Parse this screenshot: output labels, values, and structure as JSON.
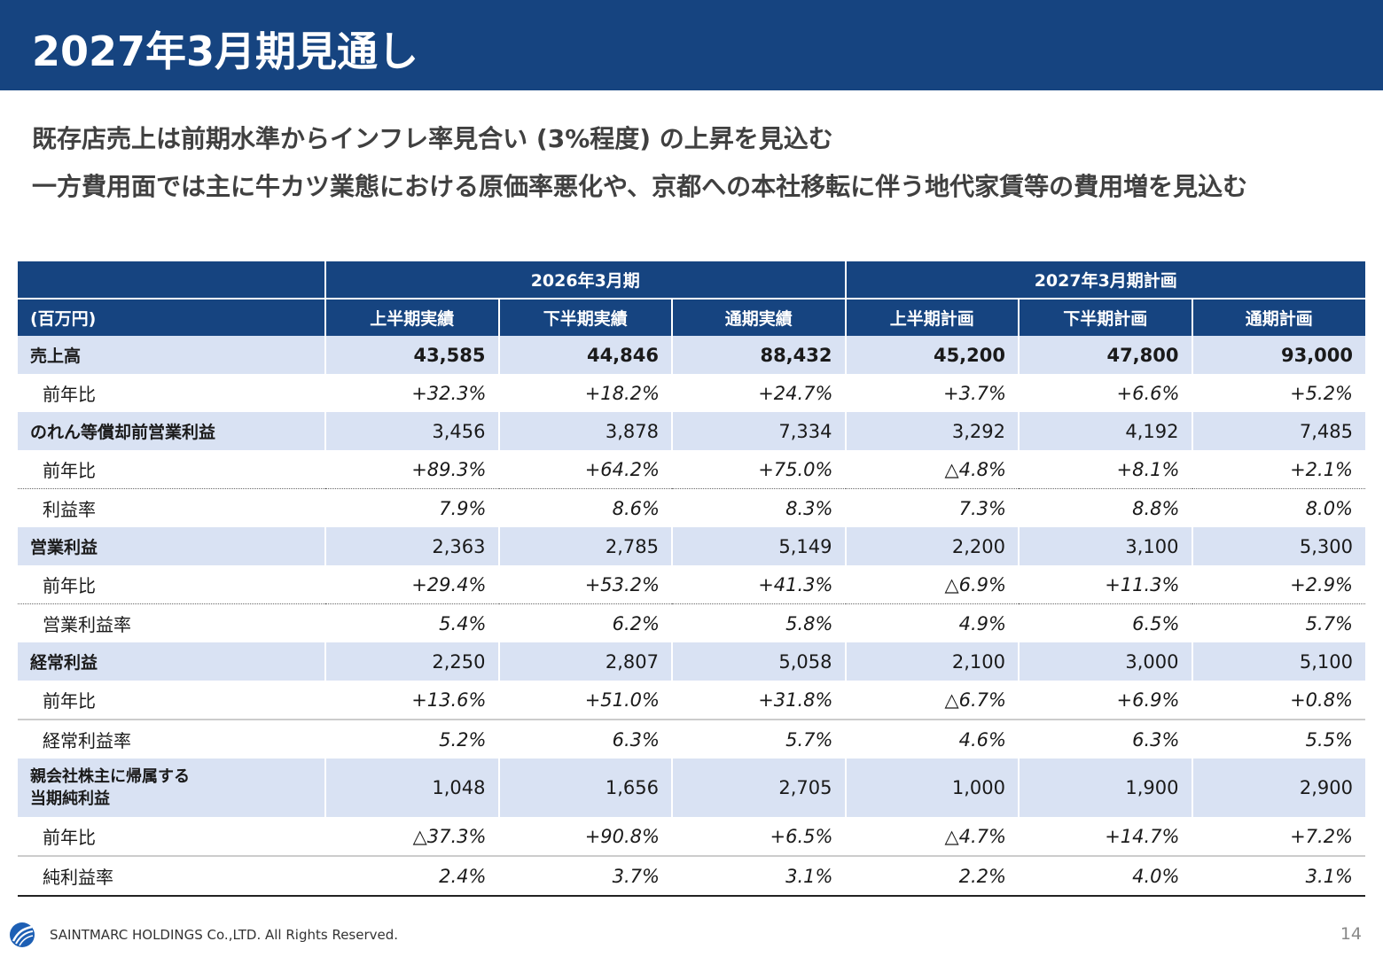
{
  "header": {
    "title": "2027年3月期見通し"
  },
  "subtitles": [
    "既存店売上は前期水準からインフレ率見合い (3%程度) の上昇を見込む",
    "一方費用面では主に牛カツ業態における原価率悪化や、京都への本社移転に伴う地代家賃等の費用増を見込む"
  ],
  "table": {
    "group_headers": [
      "2026年3月期",
      "2027年3月期計画"
    ],
    "unit_label": "(百万円)",
    "columns": [
      "上半期実績",
      "下半期実績",
      "通期実績",
      "上半期計画",
      "下半期計画",
      "通期計画"
    ],
    "rows": [
      {
        "label": "売上高",
        "values": [
          "43,585",
          "44,846",
          "88,432",
          "45,200",
          "47,800",
          "93,000"
        ]
      },
      {
        "label": "前年比",
        "values": [
          "+32.3%",
          "+18.2%",
          "+24.7%",
          "+3.7%",
          "+6.6%",
          "+5.2%"
        ]
      },
      {
        "label": "のれん等償却前営業利益",
        "values": [
          "3,456",
          "3,878",
          "7,334",
          "3,292",
          "4,192",
          "7,485"
        ]
      },
      {
        "label": "前年比",
        "values": [
          "+89.3%",
          "+64.2%",
          "+75.0%",
          "△4.8%",
          "+8.1%",
          "+2.1%"
        ]
      },
      {
        "label": "利益率",
        "values": [
          "7.9%",
          "8.6%",
          "8.3%",
          "7.3%",
          "8.8%",
          "8.0%"
        ]
      },
      {
        "label": "営業利益",
        "values": [
          "2,363",
          "2,785",
          "5,149",
          "2,200",
          "3,100",
          "5,300"
        ]
      },
      {
        "label": "前年比",
        "values": [
          "+29.4%",
          "+53.2%",
          "+41.3%",
          "△6.9%",
          "+11.3%",
          "+2.9%"
        ]
      },
      {
        "label": "営業利益率",
        "values": [
          "5.4%",
          "6.2%",
          "5.8%",
          "4.9%",
          "6.5%",
          "5.7%"
        ]
      },
      {
        "label": "経常利益",
        "values": [
          "2,250",
          "2,807",
          "5,058",
          "2,100",
          "3,000",
          "5,100"
        ]
      },
      {
        "label": "前年比",
        "values": [
          "+13.6%",
          "+51.0%",
          "+31.8%",
          "△6.7%",
          "+6.9%",
          "+0.8%"
        ]
      },
      {
        "label": "経常利益率",
        "values": [
          "5.2%",
          "6.3%",
          "5.7%",
          "4.6%",
          "6.3%",
          "5.5%"
        ]
      },
      {
        "label_line1": "親会社株主に帰属する",
        "label_line2": "当期純利益",
        "values": [
          "1,048",
          "1,656",
          "2,705",
          "1,000",
          "1,900",
          "2,900"
        ]
      },
      {
        "label": "前年比",
        "values": [
          "△37.3%",
          "+90.8%",
          "+6.5%",
          "△4.7%",
          "+14.7%",
          "+7.2%"
        ]
      },
      {
        "label": "純利益率",
        "values": [
          "2.4%",
          "3.7%",
          "3.1%",
          "2.2%",
          "4.0%",
          "3.1%"
        ]
      }
    ]
  },
  "footer": {
    "copyright": "SAINTMARC HOLDINGS Co.,LTD. All Rights Reserved.",
    "page_number": "14",
    "logo_icon": "company-logo-icon",
    "logo_color": "#1d5fb4"
  }
}
